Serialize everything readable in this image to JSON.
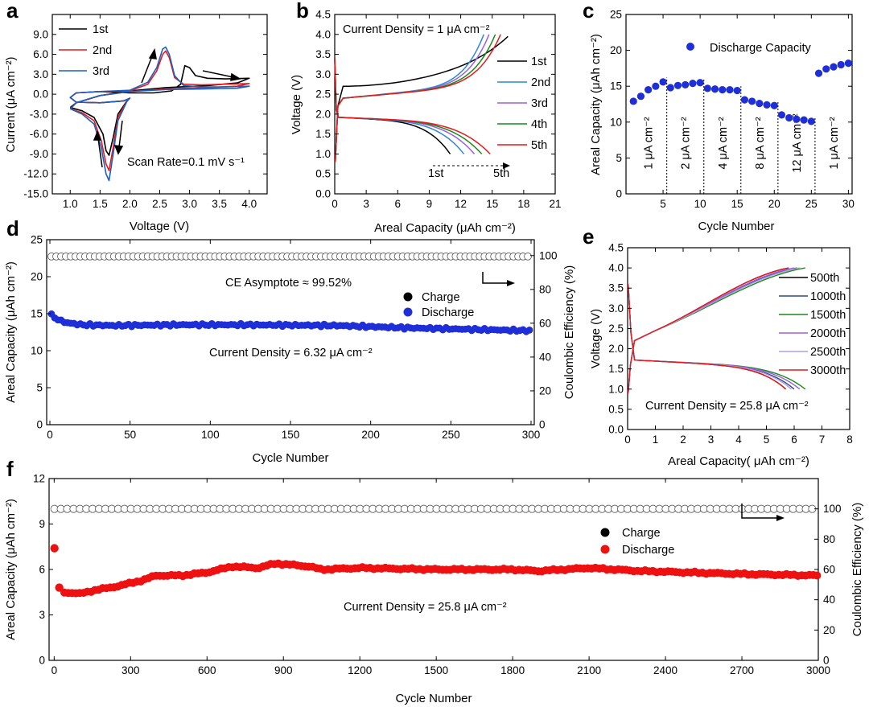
{
  "colors": {
    "black": "#000000",
    "red": "#e41a1c",
    "blue": "#1f5fbf",
    "purple": "#9b5fe0",
    "green": "#1a8a1a",
    "navy": "#2a4a8a",
    "lightblue": "#2f86d6",
    "lightpurple": "#b39ddb",
    "dot_blue": "#1f2fd8",
    "dot_red": "#ee1111"
  },
  "chart_data": [
    {
      "id": "a",
      "type": "line",
      "panel_label": "a",
      "xlabel": "Voltage (V)",
      "ylabel": "Current (μA cm⁻²)",
      "xlim": [
        0.7,
        4.3
      ],
      "ylim": [
        -15,
        12
      ],
      "xticks": [
        "1.0",
        "1.5",
        "2.0",
        "2.5",
        "3.0",
        "3.5",
        "4.0"
      ],
      "xtick_values": [
        1.0,
        1.5,
        2.0,
        2.5,
        3.0,
        3.5,
        4.0
      ],
      "yticks": [
        "-15.0",
        "-12.0",
        "-9.0",
        "-6.0",
        "-3.0",
        "0.0",
        "3.0",
        "6.0",
        "9.0"
      ],
      "ytick_values": [
        -15,
        -12,
        -9,
        -6,
        -3,
        0,
        3,
        6,
        9
      ],
      "annotation": "Scan Rate=0.1 mV s⁻¹",
      "series": [
        {
          "name": "1st",
          "color": "black",
          "x": [
            1.0,
            1.2,
            1.4,
            1.55,
            1.6,
            1.65,
            1.72,
            1.8,
            1.95,
            2.0,
            1.9,
            1.5,
            1.1,
            1.0,
            1.1,
            1.5,
            2.0,
            2.4,
            2.7,
            2.85,
            2.92,
            3.0,
            3.1,
            3.3,
            3.6,
            4.0,
            3.8,
            3.3,
            2.6,
            2.0,
            1.5,
            1.1,
            1.0
          ],
          "y": [
            -2.0,
            -2.5,
            -3.5,
            -6,
            -8.5,
            -9.2,
            -6.5,
            -3,
            -1.0,
            -0.6,
            -1.0,
            -1.3,
            -1.2,
            -0.5,
            0.2,
            0.4,
            0.2,
            0.2,
            0.5,
            1.5,
            4.3,
            4.0,
            2.8,
            2.4,
            2.3,
            2.4,
            1.7,
            1.3,
            1.0,
            0.5,
            -0.2,
            -1.3,
            -2.0
          ]
        },
        {
          "name": "2nd",
          "color": "red",
          "x": [
            1.0,
            1.2,
            1.4,
            1.52,
            1.6,
            1.65,
            1.72,
            1.8,
            1.95,
            2.0,
            1.9,
            1.5,
            1.1,
            1.0,
            1.1,
            1.5,
            2.0,
            2.3,
            2.45,
            2.55,
            2.6,
            2.66,
            2.75,
            2.9,
            3.2,
            3.6,
            4.0,
            3.8,
            3.3,
            2.6,
            2.0,
            1.5,
            1.1,
            1.0
          ],
          "y": [
            -2.2,
            -2.8,
            -4.0,
            -7,
            -10.5,
            -11.5,
            -8,
            -3.5,
            -1.0,
            -0.6,
            -1.0,
            -1.3,
            -1.2,
            -0.5,
            0.2,
            0.4,
            0.5,
            1.5,
            3.5,
            6.0,
            6.5,
            5.5,
            2.5,
            1.5,
            1.4,
            1.5,
            1.6,
            1.2,
            1.0,
            0.8,
            0.4,
            -0.2,
            -1.3,
            -2.2
          ]
        },
        {
          "name": "3rd",
          "color": "blue",
          "x": [
            1.0,
            1.2,
            1.4,
            1.52,
            1.6,
            1.65,
            1.72,
            1.8,
            1.95,
            2.0,
            1.9,
            1.5,
            1.1,
            1.0,
            1.1,
            1.5,
            2.0,
            2.3,
            2.45,
            2.55,
            2.6,
            2.66,
            2.75,
            2.9,
            3.2,
            3.6,
            4.0,
            3.8,
            3.3,
            2.6,
            2.0,
            1.5,
            1.1,
            1.0
          ],
          "y": [
            -2.2,
            -3.0,
            -4.5,
            -8,
            -12,
            -13.0,
            -9,
            -4,
            -1.1,
            -0.6,
            -1.0,
            -1.3,
            -1.2,
            -0.5,
            0.2,
            0.4,
            0.6,
            1.8,
            4.0,
            6.8,
            7.1,
            6.0,
            2.8,
            1.3,
            1.1,
            1.1,
            1.2,
            0.9,
            0.8,
            0.7,
            0.4,
            -0.2,
            -1.3,
            -2.2
          ]
        }
      ],
      "legend": [
        "1st",
        "2nd",
        "3rd"
      ]
    },
    {
      "id": "b",
      "type": "line",
      "panel_label": "b",
      "xlabel": "Areal Capacity (μAh cm⁻²)",
      "ylabel": "Voltage (V)",
      "xlim": [
        0,
        21
      ],
      "ylim": [
        0,
        4.5
      ],
      "xticks": [
        "0",
        "3",
        "6",
        "9",
        "12",
        "15",
        "18",
        "21"
      ],
      "xtick_values": [
        0,
        3,
        6,
        9,
        12,
        15,
        18,
        21
      ],
      "yticks": [
        "0.0",
        "0.5",
        "1.0",
        "1.5",
        "2.0",
        "2.5",
        "3.0",
        "3.5",
        "4.0",
        "4.5"
      ],
      "ytick_values": [
        0,
        0.5,
        1.0,
        1.5,
        2.0,
        2.5,
        3.0,
        3.5,
        4.0,
        4.5
      ],
      "annotation_top": "Current Density = 1 μA cm⁻²",
      "arrow_left": "1st",
      "arrow_right": "5th",
      "legend": [
        "1st",
        "2nd",
        "3rd",
        "4th",
        "5th"
      ],
      "series": [
        {
          "name": "1st",
          "color": "black",
          "charge_end": 16.5,
          "discharge_end": 11.0,
          "charge_plateau": 2.7
        },
        {
          "name": "2nd",
          "color": "lightblue",
          "charge_end": 14.2,
          "discharge_end": 12.3,
          "charge_plateau": 2.4
        },
        {
          "name": "3rd",
          "color": "purple",
          "charge_end": 14.7,
          "discharge_end": 13.3,
          "charge_plateau": 2.4
        },
        {
          "name": "4th",
          "color": "green",
          "charge_end": 15.3,
          "discharge_end": 14.0,
          "charge_plateau": 2.4
        },
        {
          "name": "5th",
          "color": "red",
          "charge_end": 15.8,
          "discharge_end": 14.8,
          "charge_plateau": 2.4
        }
      ]
    },
    {
      "id": "c",
      "type": "scatter",
      "panel_label": "c",
      "xlabel": "Cycle Number",
      "ylabel": "Areal Capacity (μAh cm⁻²)",
      "xlim": [
        0,
        30.5
      ],
      "ylim": [
        0,
        25
      ],
      "xticks": [
        "5",
        "10",
        "15",
        "20",
        "25",
        "30"
      ],
      "xtick_values": [
        5,
        10,
        15,
        20,
        25,
        30
      ],
      "yticks": [
        "0",
        "5",
        "10",
        "15",
        "20",
        "25"
      ],
      "ytick_values": [
        0,
        5,
        10,
        15,
        20,
        25
      ],
      "legend": [
        "Discharge Capacity"
      ],
      "x": [
        1,
        2,
        3,
        4,
        5,
        6,
        7,
        8,
        9,
        10,
        11,
        12,
        13,
        14,
        15,
        16,
        17,
        18,
        19,
        20,
        21,
        22,
        23,
        24,
        25,
        26,
        27,
        28,
        29,
        30
      ],
      "values": [
        12.9,
        13.6,
        14.5,
        15.0,
        15.6,
        14.8,
        15.1,
        15.2,
        15.4,
        15.5,
        14.7,
        14.6,
        14.5,
        14.5,
        14.4,
        13.1,
        12.9,
        12.6,
        12.4,
        12.3,
        11.0,
        10.6,
        10.4,
        10.3,
        10.1,
        16.8,
        17.4,
        17.7,
        18.0,
        18.2
      ],
      "dividers": [
        5.5,
        10.5,
        15.5,
        20.5,
        25.5
      ],
      "segment_labels": [
        "1 μA cm⁻²",
        "2 μA cm⁻²",
        "4 μA cm⁻²",
        "8 μA cm⁻²",
        "12 μA cm⁻²",
        "1 μA cm⁻²"
      ],
      "segment_x": [
        3,
        8,
        13,
        18,
        23,
        28
      ]
    },
    {
      "id": "d",
      "type": "scatter",
      "panel_label": "d",
      "xlabel": "Cycle Number",
      "ylabel": "Areal Capacity (μAh cm⁻²)",
      "ylabel_right": "Coulombic Efficiency (%)",
      "xlim": [
        -2,
        302
      ],
      "ylim": [
        0,
        25
      ],
      "ylim_right": [
        0,
        109.4
      ],
      "xticks": [
        "0",
        "50",
        "100",
        "150",
        "200",
        "250",
        "300"
      ],
      "xtick_values": [
        0,
        50,
        100,
        150,
        200,
        250,
        300
      ],
      "yticks": [
        "0",
        "5",
        "10",
        "15",
        "20",
        "25"
      ],
      "ytick_values": [
        0,
        5,
        10,
        15,
        20,
        25
      ],
      "yticks_right": [
        "0",
        "20",
        "40",
        "60",
        "80",
        "100"
      ],
      "ytick_values_right": [
        0,
        20,
        40,
        60,
        80,
        100
      ],
      "annotation_ce": "CE Asymptote ≈ 99.52%",
      "annotation_cd": "Current Density = 6.32 μA cm⁻²",
      "legend": [
        "Charge",
        "Discharge"
      ],
      "ce_value": 99.5,
      "capacity_profile": [
        [
          1,
          14.8
        ],
        [
          5,
          14.2
        ],
        [
          10,
          13.8
        ],
        [
          20,
          13.5
        ],
        [
          40,
          13.4
        ],
        [
          80,
          13.5
        ],
        [
          120,
          13.5
        ],
        [
          180,
          13.4
        ],
        [
          220,
          13.1
        ],
        [
          260,
          12.9
        ],
        [
          300,
          12.7
        ]
      ]
    },
    {
      "id": "e",
      "type": "line",
      "panel_label": "e",
      "xlabel": "Areal Capacity( μAh cm⁻²)",
      "ylabel": "Voltage (V)",
      "xlim": [
        0,
        8
      ],
      "ylim": [
        0,
        4.5
      ],
      "xticks": [
        "0",
        "1",
        "2",
        "3",
        "4",
        "5",
        "6",
        "7",
        "8"
      ],
      "xtick_values": [
        0,
        1,
        2,
        3,
        4,
        5,
        6,
        7,
        8
      ],
      "yticks": [
        "0.0",
        "0.5",
        "1.0",
        "1.5",
        "2.0",
        "2.5",
        "3.0",
        "3.5",
        "4.0",
        "4.5"
      ],
      "ytick_values": [
        0,
        0.5,
        1.0,
        1.5,
        2.0,
        2.5,
        3.0,
        3.5,
        4.0,
        4.5
      ],
      "annotation": "Current Density = 25.8 μA cm⁻²",
      "legend": [
        "500th",
        "1000th",
        "1500th",
        "2000th",
        "2500th",
        "3000th"
      ],
      "series": [
        {
          "name": "500th",
          "color": "black",
          "charge_end": 5.8,
          "discharge_end": 5.7
        },
        {
          "name": "1000th",
          "color": "navy",
          "charge_end": 6.1,
          "discharge_end": 6.0
        },
        {
          "name": "1500th",
          "color": "green",
          "charge_end": 6.4,
          "discharge_end": 6.4
        },
        {
          "name": "2000th",
          "color": "purple",
          "charge_end": 6.0,
          "discharge_end": 6.2
        },
        {
          "name": "2500th",
          "color": "lightpurple",
          "charge_end": 6.2,
          "discharge_end": 5.9
        },
        {
          "name": "3000th",
          "color": "red",
          "charge_end": 5.8,
          "discharge_end": 5.7
        }
      ]
    },
    {
      "id": "f",
      "type": "scatter",
      "panel_label": "f",
      "xlabel": "Cycle Number",
      "ylabel": "Areal Capacity (μAh cm⁻²)",
      "ylabel_right": "Coulombic Efficiency (%)",
      "xlim": [
        -20,
        3000
      ],
      "ylim": [
        0,
        12
      ],
      "ylim_right": [
        0,
        120
      ],
      "xticks": [
        "0",
        "300",
        "600",
        "900",
        "1200",
        "1500",
        "1800",
        "2100",
        "2400",
        "2700",
        "3000"
      ],
      "xtick_values": [
        0,
        300,
        600,
        900,
        1200,
        1500,
        1800,
        2100,
        2400,
        2700,
        3000
      ],
      "yticks": [
        "0",
        "3",
        "6",
        "9",
        "12"
      ],
      "ytick_values": [
        0,
        3,
        6,
        9,
        12
      ],
      "yticks_right": [
        "0",
        "20",
        "40",
        "60",
        "80",
        "100"
      ],
      "ytick_values_right": [
        0,
        20,
        40,
        60,
        80,
        100
      ],
      "annotation_cd": "Current Density = 25.8 μA cm⁻²",
      "legend": [
        "Charge",
        "Discharge"
      ],
      "ce_value": 100,
      "first_points": [
        [
          1,
          7.4
        ],
        [
          20,
          4.8
        ]
      ],
      "capacity_profile": [
        [
          40,
          4.5
        ],
        [
          100,
          4.4
        ],
        [
          150,
          4.6
        ],
        [
          250,
          4.9
        ],
        [
          350,
          5.3
        ],
        [
          400,
          5.6
        ],
        [
          500,
          5.6
        ],
        [
          600,
          5.8
        ],
        [
          700,
          6.2
        ],
        [
          800,
          6.1
        ],
        [
          870,
          6.4
        ],
        [
          1000,
          6.2
        ],
        [
          1050,
          6.0
        ],
        [
          1200,
          6.1
        ],
        [
          1500,
          6.0
        ],
        [
          1800,
          6.0
        ],
        [
          1900,
          5.9
        ],
        [
          2100,
          6.1
        ],
        [
          2300,
          5.9
        ],
        [
          2500,
          5.8
        ],
        [
          2700,
          5.7
        ],
        [
          3000,
          5.6
        ]
      ]
    }
  ]
}
